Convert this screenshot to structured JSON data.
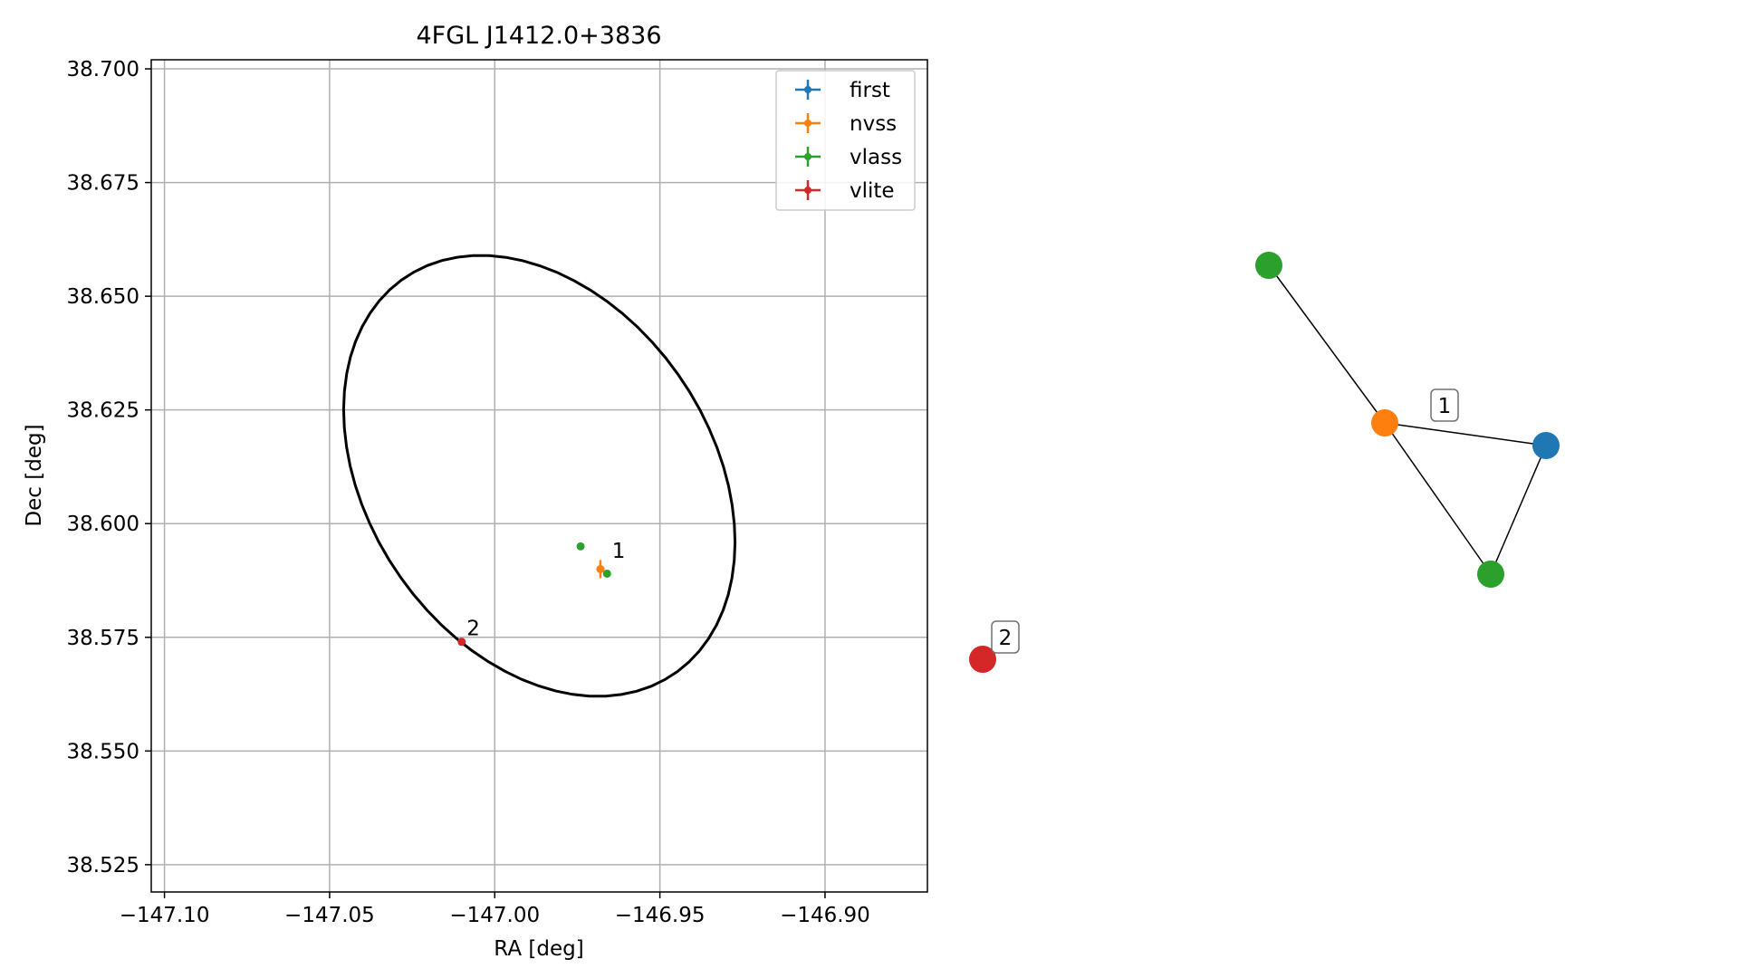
{
  "chart_data": [
    {
      "type": "scatter",
      "title": "4FGL J1412.0+3836",
      "xlabel": "RA [deg]",
      "ylabel": "Dec [deg]",
      "xlim": [
        -147.104,
        -146.869
      ],
      "ylim": [
        38.519,
        38.702
      ],
      "grid": true,
      "legend_position": "top-right",
      "x_ticks": [
        -147.1,
        -147.05,
        -147.0,
        -146.95,
        -146.9
      ],
      "x_tick_labels": [
        "−147.10",
        "−147.05",
        "−147.00",
        "−146.95",
        "−146.90"
      ],
      "y_ticks": [
        38.525,
        38.55,
        38.575,
        38.6,
        38.625,
        38.65,
        38.675,
        38.7
      ],
      "y_tick_labels": [
        "38.525",
        "38.550",
        "38.575",
        "38.600",
        "38.625",
        "38.650",
        "38.675",
        "38.700"
      ],
      "ellipse": {
        "center": [
          -146.9865,
          38.6105
        ],
        "semi_axes": [
          0.063,
          0.0435
        ],
        "angle_deg": -28,
        "color": "#000000"
      },
      "series": [
        {
          "name": "first",
          "color": "#1f77b4",
          "points": []
        },
        {
          "name": "nvss",
          "color": "#ff7f0e",
          "points": [
            {
              "x": -146.968,
              "y": 38.59,
              "xerr": 0.0012,
              "yerr": 0.002
            }
          ]
        },
        {
          "name": "vlass",
          "color": "#2ca02c",
          "points": [
            {
              "x": -146.974,
              "y": 38.595
            },
            {
              "x": -146.966,
              "y": 38.589
            }
          ]
        },
        {
          "name": "vlite",
          "color": "#d62728",
          "points": [
            {
              "x": -147.01,
              "y": 38.574
            }
          ]
        }
      ],
      "annotations": [
        {
          "text": "1",
          "x": -146.9645,
          "y": 38.5925
        },
        {
          "text": "2",
          "x": -147.0085,
          "y": 38.5755
        }
      ]
    },
    {
      "type": "network",
      "nodes": [
        {
          "id": "vlass_a",
          "color": "#2ca02c"
        },
        {
          "id": "nvss",
          "color": "#ff7f0e"
        },
        {
          "id": "first",
          "color": "#1f77b4"
        },
        {
          "id": "vlass_b",
          "color": "#2ca02c"
        },
        {
          "id": "vlite",
          "color": "#d62728"
        }
      ],
      "edges": [
        [
          "vlass_a",
          "nvss"
        ],
        [
          "nvss",
          "first"
        ],
        [
          "nvss",
          "vlass_b"
        ],
        [
          "first",
          "vlass_b"
        ]
      ],
      "group_labels": [
        "1",
        "2"
      ]
    }
  ]
}
